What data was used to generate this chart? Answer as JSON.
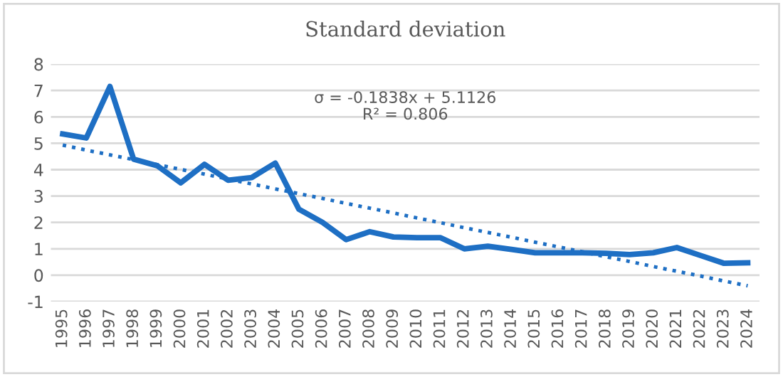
{
  "chart_data": {
    "type": "line",
    "title": "Standard deviation",
    "categories": [
      "1995",
      "1996",
      "1997",
      "1998",
      "1999",
      "2000",
      "2001",
      "2002",
      "2003",
      "2004",
      "2005",
      "2006",
      "2007",
      "2008",
      "2009",
      "2010",
      "2011",
      "2012",
      "2013",
      "2014",
      "2015",
      "2016",
      "2017",
      "2018",
      "2019",
      "2020",
      "2021",
      "2022",
      "2023",
      "2024"
    ],
    "series": [
      {
        "color": "#1e6fc4",
        "line_style": "solid",
        "values": [
          5.35,
          5.2,
          7.15,
          4.4,
          4.15,
          3.5,
          4.2,
          3.6,
          3.7,
          4.25,
          2.5,
          2.0,
          1.35,
          1.65,
          1.45,
          1.42,
          1.42,
          1.0,
          1.1,
          0.98,
          0.85,
          0.85,
          0.85,
          0.83,
          0.78,
          0.85,
          1.05,
          0.75,
          0.45,
          0.47
        ]
      },
      {
        "color": "#1e6fc4",
        "line_style": "dotted",
        "values": [
          4.93,
          4.74,
          4.56,
          4.38,
          4.19,
          4.01,
          3.83,
          3.64,
          3.46,
          3.27,
          3.09,
          2.91,
          2.72,
          2.54,
          2.36,
          2.17,
          1.99,
          1.8,
          1.62,
          1.44,
          1.25,
          1.07,
          0.89,
          0.7,
          0.52,
          0.33,
          0.15,
          -0.03,
          -0.22,
          -0.4
        ]
      }
    ],
    "annotations": [
      "σ = -0.1838x + 5.1126",
      "R² = 0.806"
    ],
    "ylim": [
      -1,
      8
    ],
    "yticks": [
      -1,
      0,
      1,
      2,
      3,
      4,
      5,
      6,
      7,
      8
    ],
    "grid": "y",
    "legend": false,
    "marker": "none"
  }
}
